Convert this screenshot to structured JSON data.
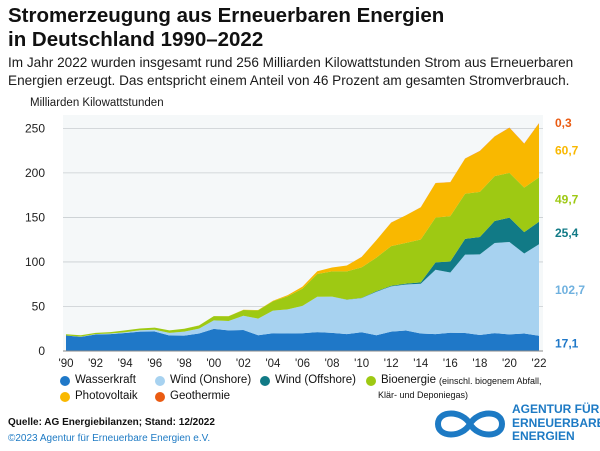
{
  "title": "Stromerzeugung aus Erneuerbaren Energien\nin Deutschland 1990–2022",
  "subtitle": "Im Jahr 2022 wurden insgesamt rund 256 Milliarden Kilowattstunden Strom aus Erneuerbaren Energien erzeugt. Das entspricht einem Anteil von 46 Prozent am gesamten Stromverbrauch.",
  "chart_data": {
    "type": "area",
    "stacked": true,
    "ylabel": "Milliarden Kilowattstunden",
    "ylim": [
      0,
      265
    ],
    "yticks": [
      0,
      50,
      100,
      150,
      200,
      250
    ],
    "grid": true,
    "x": [
      1990,
      1991,
      1992,
      1993,
      1994,
      1995,
      1996,
      1997,
      1998,
      1999,
      2000,
      2001,
      2002,
      2003,
      2004,
      2005,
      2006,
      2007,
      2008,
      2009,
      2010,
      2011,
      2012,
      2013,
      2014,
      2015,
      2016,
      2017,
      2018,
      2019,
      2020,
      2021,
      2022
    ],
    "xtick_labels": [
      "'90",
      "'92",
      "'94",
      "'96",
      "'98",
      "'00",
      "'02",
      "'04",
      "'06",
      "'08",
      "'10",
      "'12",
      "'14",
      "'16",
      "'18",
      "'20",
      "'22"
    ],
    "xtick_years": [
      1990,
      1992,
      1994,
      1996,
      1998,
      2000,
      2002,
      2004,
      2006,
      2008,
      2010,
      2012,
      2014,
      2016,
      2018,
      2020,
      2022
    ],
    "series": [
      {
        "name": "Wasserkraft",
        "color": "#1f78c8",
        "values": [
          17.4,
          15.9,
          18.6,
          19.0,
          20.2,
          21.8,
          21.9,
          17.4,
          17.2,
          19.6,
          24.9,
          23.2,
          23.6,
          17.7,
          19.9,
          19.6,
          20.0,
          21.2,
          20.4,
          19.0,
          21.0,
          17.7,
          21.8,
          23.0,
          19.6,
          18.9,
          20.5,
          20.2,
          18.0,
          20.1,
          18.7,
          19.7,
          17.1
        ]
      },
      {
        "name": "Wind (Onshore)",
        "color": "#a7d2f0",
        "values": [
          0.07,
          0.25,
          0.3,
          0.6,
          0.9,
          1.5,
          2.0,
          3.0,
          4.5,
          5.5,
          9.5,
          10.5,
          16.0,
          18.7,
          25.5,
          27.2,
          30.7,
          39.7,
          40.6,
          38.6,
          38.4,
          48.9,
          50.7,
          51.7,
          55.9,
          72.3,
          67.7,
          88.0,
          90.5,
          101.2,
          103.7,
          89.8,
          102.7
        ]
      },
      {
        "name": "Wind (Offshore)",
        "color": "#117a86",
        "values": [
          0,
          0,
          0,
          0,
          0,
          0,
          0,
          0,
          0,
          0,
          0,
          0,
          0,
          0,
          0,
          0,
          0,
          0,
          0,
          0.04,
          0.2,
          0.6,
          0.7,
          0.9,
          1.5,
          8.3,
          12.3,
          17.7,
          19.5,
          24.7,
          27.3,
          24.0,
          25.4
        ]
      },
      {
        "name": "Bioenergie",
        "color": "#9ec913",
        "values": [
          1.4,
          1.5,
          1.5,
          1.6,
          2.0,
          2.0,
          2.4,
          2.8,
          3.3,
          3.6,
          4.7,
          5.3,
          6.5,
          9.3,
          10.5,
          14.7,
          19.4,
          25.6,
          28.4,
          31.8,
          34.3,
          37.7,
          44.6,
          45.8,
          48.2,
          50.3,
          50.9,
          50.7,
          50.7,
          50.4,
          50.3,
          49.9,
          49.7
        ]
      },
      {
        "name": "Photovoltaik",
        "color": "#f9b800",
        "values": [
          0.001,
          0.002,
          0.003,
          0.006,
          0.008,
          0.007,
          0.012,
          0.018,
          0.035,
          0.03,
          0.06,
          0.12,
          0.19,
          0.31,
          0.56,
          1.3,
          2.2,
          3.1,
          4.4,
          6.6,
          11.7,
          19.6,
          26.4,
          31.0,
          36.1,
          38.7,
          38.1,
          39.4,
          45.8,
          44.4,
          50.6,
          49.3,
          60.7
        ]
      },
      {
        "name": "Geothermie",
        "color": "#ea5b12",
        "values": [
          0,
          0,
          0,
          0,
          0,
          0,
          0,
          0,
          0,
          0,
          0,
          0,
          0,
          0,
          0.0002,
          0.0002,
          0.0004,
          0.0004,
          0.018,
          0.019,
          0.028,
          0.019,
          0.025,
          0.08,
          0.098,
          0.13,
          0.17,
          0.16,
          0.18,
          0.2,
          0.23,
          0.25,
          0.3
        ]
      }
    ],
    "end_labels": [
      {
        "series": "Geothermie",
        "value": "0,3"
      },
      {
        "series": "Photovoltaik",
        "value": "60,7"
      },
      {
        "series": "Bioenergie",
        "value": "49,7"
      },
      {
        "series": "Wind (Offshore)",
        "value": "25,4"
      },
      {
        "series": "Wind (Onshore)",
        "value": "102,7"
      },
      {
        "series": "Wasserkraft",
        "value": "17,1"
      }
    ]
  },
  "legend": {
    "items": [
      {
        "label": "Wasserkraft",
        "color": "#1f78c8",
        "note": ""
      },
      {
        "label": "Wind (Onshore)",
        "color": "#a7d2f0",
        "note": ""
      },
      {
        "label": "Wind (Offshore)",
        "color": "#117a86",
        "note": ""
      },
      {
        "label": "Bioenergie",
        "color": "#9ec913",
        "note": "(einschl. biogenem Abfall,"
      },
      {
        "label": "Photovoltaik",
        "color": "#f9b800",
        "note": ""
      },
      {
        "label": "Geothermie",
        "color": "#ea5b12",
        "note": ""
      }
    ],
    "note_line2": "Klär- und Deponiegas)"
  },
  "footer": {
    "source": "Quelle: AG Energiebilanzen; Stand: 12/2022",
    "copyright": "©2023 Agentur für Erneuerbare Energien e.V.",
    "logo_text": "AGENTUR FÜR\nERNEUERBARE\nENERGIEN",
    "logo_color": "#1d7ac4"
  }
}
